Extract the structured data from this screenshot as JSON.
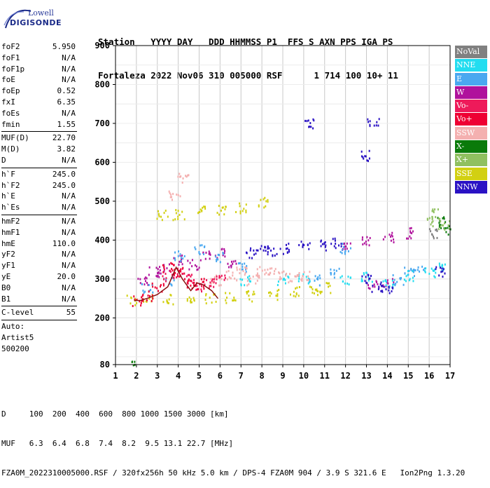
{
  "logo": {
    "line1": "Lowell",
    "line2": "DIGISONDE"
  },
  "header": {
    "line1": "Station   YYYY DAY   DDD HHMMSS P1  FFS S AXN PPS IGA PS",
    "line2": "Fortaleza 2022 Nov06 310 005000 RSF      1 714 100 10+ 11"
  },
  "params": {
    "group1": [
      {
        "label": "foF2",
        "value": "5.950"
      },
      {
        "label": "foF1",
        "value": "N/A"
      },
      {
        "label": "foF1p",
        "value": "N/A"
      },
      {
        "label": "foE",
        "value": "N/A"
      },
      {
        "label": "foEp",
        "value": "0.52"
      },
      {
        "label": "fxI",
        "value": "6.35"
      },
      {
        "label": "foEs",
        "value": "N/A"
      },
      {
        "label": "fmin",
        "value": "1.55"
      }
    ],
    "group2": [
      {
        "label": "MUF(D)",
        "value": "22.70"
      },
      {
        "label": "M(D)",
        "value": "3.82"
      },
      {
        "label": "D",
        "value": "N/A"
      }
    ],
    "group3": [
      {
        "label": "h`F",
        "value": "245.0"
      },
      {
        "label": "h`F2",
        "value": "245.0"
      },
      {
        "label": "h`E",
        "value": "N/A"
      },
      {
        "label": "h`Es",
        "value": "N/A"
      }
    ],
    "group4": [
      {
        "label": "hmF2",
        "value": "N/A"
      },
      {
        "label": "hmF1",
        "value": "N/A"
      },
      {
        "label": "hmE",
        "value": "110.0"
      },
      {
        "label": "yF2",
        "value": "N/A"
      },
      {
        "label": "yF1",
        "value": "N/A"
      },
      {
        "label": "yE",
        "value": "20.0"
      },
      {
        "label": "B0",
        "value": "N/A"
      },
      {
        "label": "B1",
        "value": "N/A"
      }
    ],
    "group5": [
      {
        "label": "C-level",
        "value": "55"
      }
    ],
    "auto": [
      "Auto:",
      "Artist5",
      "500200"
    ]
  },
  "legend": [
    {
      "label": "NoVal",
      "color": "#808080"
    },
    {
      "label": "NNE",
      "color": "#22ddf0"
    },
    {
      "label": "E",
      "color": "#4aa8f0"
    },
    {
      "label": "W",
      "color": "#b0129c"
    },
    {
      "label": "Vo-",
      "color": "#ee1a5a"
    },
    {
      "label": "Vo+",
      "color": "#ee0033"
    },
    {
      "label": "SSW",
      "color": "#f4b0b0"
    },
    {
      "label": "X-",
      "color": "#0a7a0a"
    },
    {
      "label": "X+",
      "color": "#90c060"
    },
    {
      "label": "SSE",
      "color": "#d2d012"
    },
    {
      "label": "NNW",
      "color": "#2a12c4"
    }
  ],
  "footer": {
    "line1": "D     100  200  400  600  800 1000 1500 3000 [km]",
    "line2": "MUF   6.3  6.4  6.8  7.4  8.2  9.5 13.1 22.7 [MHz]",
    "line3": "FZA0M_2022310005000.RSF / 320fx256h 50 kHz 5.0 km / DPS-4 FZA0M 904 / 3.9 S 321.6 E   Ion2Png 1.3.20"
  },
  "chart_data": {
    "type": "scatter",
    "title": "",
    "xlabel": "",
    "ylabel": "",
    "xlim": [
      1,
      17
    ],
    "ylim": [
      80,
      900
    ],
    "x_ticks": [
      1,
      2,
      3,
      4,
      5,
      6,
      7,
      8,
      9,
      10,
      11,
      12,
      13,
      14,
      15,
      16,
      17
    ],
    "y_ticks": [
      80,
      200,
      300,
      400,
      500,
      600,
      700,
      800,
      900
    ],
    "grid": true,
    "legend_position": "right",
    "series": [
      {
        "name": "SSE",
        "color": "#d2d012",
        "points": [
          [
            1.8,
            248
          ],
          [
            2.5,
            250
          ],
          [
            3.5,
            250
          ],
          [
            4.5,
            250
          ],
          [
            5.5,
            252
          ],
          [
            6.5,
            255
          ],
          [
            7.5,
            258
          ],
          [
            8.5,
            262
          ],
          [
            9.5,
            268
          ],
          [
            10.5,
            275
          ],
          [
            11.0,
            280
          ],
          [
            3.2,
            465
          ],
          [
            4.0,
            468
          ],
          [
            5.0,
            475
          ],
          [
            6.0,
            480
          ],
          [
            7.0,
            485
          ],
          [
            8.0,
            500
          ]
        ]
      },
      {
        "name": "W",
        "color": "#b0129c",
        "points": [
          [
            2.3,
            300
          ],
          [
            2.8,
            320
          ],
          [
            3.3,
            330
          ],
          [
            4.0,
            350
          ],
          [
            4.7,
            340
          ],
          [
            5.3,
            360
          ],
          [
            6.0,
            370
          ],
          [
            6.5,
            340
          ],
          [
            12.0,
            390
          ],
          [
            13.0,
            400
          ],
          [
            14.0,
            410
          ],
          [
            15.0,
            420
          ],
          [
            13.3,
            285
          ],
          [
            14.0,
            290
          ]
        ]
      },
      {
        "name": "E",
        "color": "#4aa8f0",
        "points": [
          [
            2.5,
            280
          ],
          [
            3.5,
            300
          ],
          [
            4.0,
            360
          ],
          [
            5.0,
            380
          ],
          [
            6.0,
            360
          ],
          [
            7.0,
            330
          ],
          [
            10.5,
            300
          ],
          [
            11.5,
            320
          ],
          [
            12.0,
            380
          ],
          [
            14.5,
            300
          ],
          [
            15.0,
            320
          ],
          [
            15.5,
            325
          ]
        ]
      },
      {
        "name": "NNE",
        "color": "#22ddf0",
        "points": [
          [
            7.2,
            300
          ],
          [
            9.0,
            300
          ],
          [
            10.0,
            305
          ],
          [
            14.0,
            295
          ],
          [
            15.0,
            310
          ],
          [
            16.0,
            320
          ],
          [
            16.5,
            330
          ],
          [
            12.0,
            300
          ],
          [
            13.0,
            305
          ]
        ]
      },
      {
        "name": "NNW",
        "color": "#2a12c4",
        "points": [
          [
            7.5,
            370
          ],
          [
            8.0,
            375
          ],
          [
            8.5,
            375
          ],
          [
            9.0,
            380
          ],
          [
            10.0,
            390
          ],
          [
            11.0,
            390
          ],
          [
            11.5,
            395
          ],
          [
            13.0,
            300
          ],
          [
            13.5,
            280
          ],
          [
            14.0,
            280
          ],
          [
            16.5,
            320
          ],
          [
            10.2,
            700
          ],
          [
            13.0,
            620
          ],
          [
            13.3,
            700
          ]
        ]
      },
      {
        "name": "SSW",
        "color": "#f4b0b0",
        "points": [
          [
            5.8,
            300
          ],
          [
            6.5,
            310
          ],
          [
            7.0,
            320
          ],
          [
            7.5,
            300
          ],
          [
            8.0,
            320
          ],
          [
            8.5,
            325
          ],
          [
            9.0,
            310
          ],
          [
            9.5,
            305
          ],
          [
            10.0,
            310
          ],
          [
            3.8,
            520
          ],
          [
            4.2,
            560
          ]
        ]
      },
      {
        "name": "Vo-",
        "color": "#ee1a5a",
        "points": [
          [
            3.5,
            310
          ],
          [
            4.0,
            320
          ],
          [
            4.5,
            300
          ],
          [
            5.0,
            280
          ],
          [
            5.5,
            290
          ],
          [
            6.0,
            300
          ]
        ]
      },
      {
        "name": "Vo+",
        "color": "#ee0033",
        "points": [
          [
            2.0,
            245
          ],
          [
            2.5,
            260
          ],
          [
            3.0,
            280
          ],
          [
            3.5,
            330
          ],
          [
            4.0,
            320
          ],
          [
            4.5,
            290
          ],
          [
            5.0,
            290
          ]
        ]
      },
      {
        "name": "X-",
        "color": "#0a7a0a",
        "points": [
          [
            1.9,
            82
          ],
          [
            16.5,
            450
          ],
          [
            16.8,
            430
          ]
        ]
      },
      {
        "name": "X+",
        "color": "#90c060",
        "points": [
          [
            16.0,
            450
          ],
          [
            16.3,
            470
          ],
          [
            16.7,
            440
          ]
        ]
      },
      {
        "name": "NoVal",
        "color": "#808080",
        "points": [
          [
            16.2,
            420
          ]
        ]
      }
    ],
    "trace": {
      "color": "#8a1010",
      "points": [
        [
          1.9,
          245
        ],
        [
          2.2,
          245
        ],
        [
          2.5,
          250
        ],
        [
          3.0,
          260
        ],
        [
          3.5,
          280
        ],
        [
          3.9,
          330
        ],
        [
          4.2,
          300
        ],
        [
          4.6,
          270
        ],
        [
          4.9,
          290
        ],
        [
          5.2,
          285
        ],
        [
          5.6,
          270
        ],
        [
          5.9,
          250
        ]
      ]
    }
  }
}
